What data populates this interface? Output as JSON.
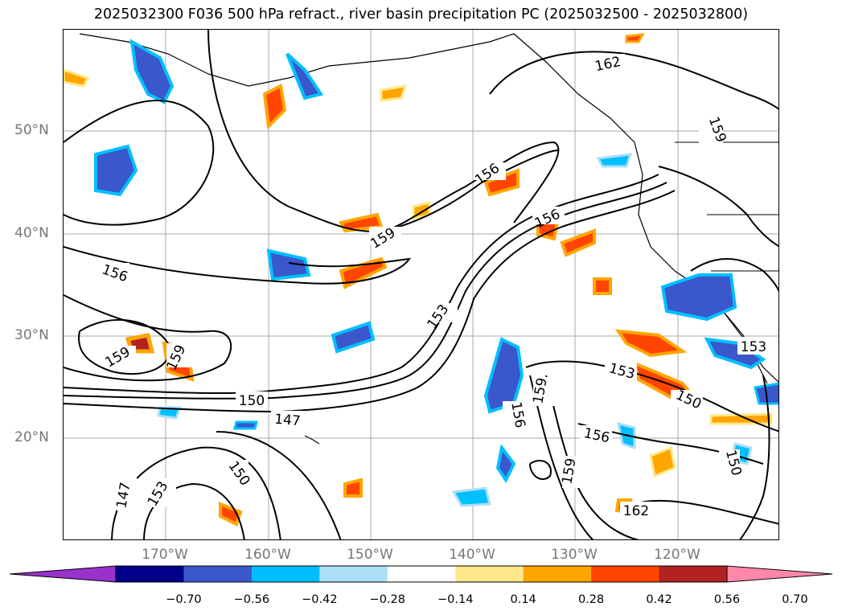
{
  "title": "2025032300 F036 500 hPa refract., river basin precipitation PC (2025032500 - 2025032800)",
  "lat_labels": [
    "50°N",
    "40°N",
    "30°N",
    "20°N"
  ],
  "lon_labels": [
    "170°W",
    "160°W",
    "150°W",
    "140°W",
    "130°W",
    "120°W"
  ],
  "colorbar": {
    "ticks": [
      "−0.70",
      "−0.56",
      "−0.42",
      "−0.28",
      "−0.14",
      "0.14",
      "0.28",
      "0.42",
      "0.56",
      "0.70"
    ],
    "colors": [
      "#9932CC",
      "#00008B",
      "#3A57CC",
      "#00BFFF",
      "#ADDFF7",
      "#FFFFFF",
      "#FFE88A",
      "#FFA500",
      "#FF4500",
      "#B22222",
      "#FF88AA"
    ]
  },
  "contour_labels": [
    "162",
    "159",
    "156",
    "159",
    "156",
    "156",
    "153",
    "159",
    "159",
    "150",
    "147",
    "147",
    "153",
    "150",
    "153",
    "159",
    "156",
    "156",
    "159",
    "150",
    "150",
    "153",
    "162"
  ],
  "map": {
    "region": "North Pacific",
    "lat_range": [
      10,
      60
    ],
    "lon_range": [
      -180,
      -110
    ]
  }
}
